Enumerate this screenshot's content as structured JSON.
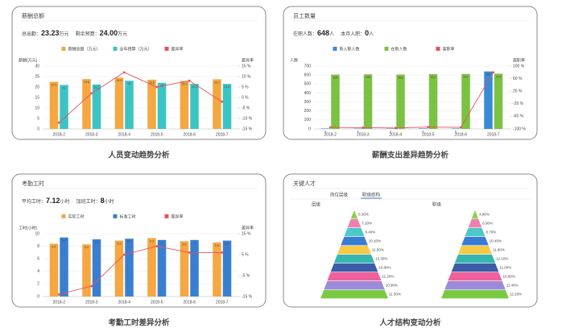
{
  "chart_data": [
    {
      "type": "bar",
      "caption": "人员变动趋势分析",
      "title": "薪酬总额",
      "stats": [
        {
          "label": "总出勤：",
          "value": "23.23",
          "unit": "万元"
        },
        {
          "label": "剩余预算：",
          "value": "24.00",
          "unit": "万元"
        }
      ],
      "y_label": "薪酬(万元)",
      "y2_label": "差异率",
      "categories": [
        "2018-2",
        "2018-3",
        "2018-4",
        "2018-5",
        "2018-6",
        "2018-7"
      ],
      "series": [
        {
          "name": "薪酬总额（万元）",
          "color": "#f5a742",
          "values": [
            22.5,
            23.8,
            24.5,
            23.5,
            22.9,
            23.7
          ]
        },
        {
          "name": "全年预算（万元）",
          "color": "#3cc4c4",
          "values": [
            21.0,
            21.2,
            23.0,
            22.0,
            21.5,
            21.5
          ]
        },
        {
          "name": "差异率",
          "color": "#e8505b",
          "axis": "y2",
          "values": [
            -12,
            2,
            12,
            5,
            8,
            -2
          ]
        }
      ],
      "ylim": [
        0,
        30
      ],
      "yticks": [
        0,
        5,
        10,
        15,
        20,
        25,
        30
      ],
      "y2lim": [
        -15,
        15
      ],
      "y2ticks": [
        {
          "value": -15,
          "label": "-15 %"
        },
        {
          "value": -10,
          "label": "-10 %"
        },
        {
          "value": -5,
          "label": "-5 %"
        },
        {
          "value": 0,
          "label": "0 %"
        },
        {
          "value": 5,
          "label": "5 %"
        },
        {
          "value": 10,
          "label": "10 %"
        },
        {
          "value": 15,
          "label": "15 %"
        }
      ]
    },
    {
      "type": "bar",
      "caption": "薪酬支出差异趋势分析",
      "title": "员工数量",
      "stats": [
        {
          "label": "在职人数：",
          "value": "648",
          "unit": "人"
        },
        {
          "label": "本月入职：",
          "value": "0",
          "unit": "人"
        }
      ],
      "y_label": "人数",
      "y2_label": "离职率",
      "categories": [
        "2018-2",
        "2018-3",
        "2018-4",
        "2018-5",
        "2018-6",
        "2018-7"
      ],
      "series": [
        {
          "name": "新入职人数",
          "color": "#3a8bd6",
          "values": [
            5,
            4,
            3,
            6,
            5,
            640
          ]
        },
        {
          "name": "在职人数",
          "color": "#7cc242",
          "values": [
            605,
            608,
            606,
            610,
            612,
            615
          ]
        },
        {
          "name": "离职率",
          "color": "#e8505b",
          "axis": "y2",
          "values": [
            -95,
            -96,
            -97,
            -94,
            -95,
            80
          ]
        }
      ],
      "ylim": [
        0,
        700
      ],
      "yticks": [
        0,
        100,
        200,
        300,
        400,
        500,
        600,
        700
      ],
      "y2lim": [
        -100,
        100
      ],
      "y2ticks": [
        {
          "value": -100,
          "label": "-100 %"
        },
        {
          "value": -60,
          "label": "-60 %"
        },
        {
          "value": -20,
          "label": "-20 %"
        },
        {
          "value": 20,
          "label": "20 %"
        },
        {
          "value": 60,
          "label": "60 %"
        },
        {
          "value": 100,
          "label": "100 %"
        }
      ]
    },
    {
      "type": "bar",
      "caption": "考勤工时差异分析",
      "title": "考勤工时",
      "stats": [
        {
          "label": "平均工时：",
          "value": "7.12",
          "unit": "小时"
        },
        {
          "label": "加班工时：",
          "value": "8",
          "unit": "小时"
        }
      ],
      "y_label": "工时(小时)",
      "y2_label": "差异率",
      "categories": [
        "2018-2",
        "2018-3",
        "2018-4",
        "2018-5",
        "2018-6",
        "2018-7"
      ],
      "series": [
        {
          "name": "实际工时",
          "color": "#f5a742",
          "values": [
            8.4,
            8.3,
            8.9,
            9.3,
            8.8,
            8.6
          ]
        },
        {
          "name": "标准工时",
          "color": "#3a7fcf",
          "values": [
            9.4,
            9.1,
            9.2,
            9.0,
            9.0,
            8.9
          ]
        },
        {
          "name": "差异率",
          "color": "#e8505b",
          "axis": "y2",
          "values": [
            -14,
            -10,
            5,
            9,
            6,
            6
          ]
        }
      ],
      "ylim": [
        0,
        10
      ],
      "yticks": [
        0,
        2,
        4,
        6,
        8,
        10
      ],
      "y2lim": [
        -15,
        15
      ],
      "y2ticks": [
        {
          "value": -15,
          "label": "-15 %"
        },
        {
          "value": -5,
          "label": "-5 %"
        },
        {
          "value": 5,
          "label": "5 %"
        },
        {
          "value": 15,
          "label": "15 %"
        }
      ]
    },
    {
      "type": "pyramid",
      "caption": "人才结构变动分析",
      "title": "关键人才",
      "tabs": [
        "岗位层级",
        "职级结构"
      ],
      "pyramids": [
        {
          "title": "层级",
          "values": [
            5.3,
            7.2,
            9.4,
            10.1,
            11.5,
            12.3,
            10.8,
            11.2,
            10.9,
            11.3
          ],
          "value_labels": [
            "5.30%",
            "7.20%",
            "9.40%",
            "10.10%",
            "11.50%",
            "12.30%",
            "10.80%",
            "11.20%",
            "10.90%",
            "11.30%"
          ]
        },
        {
          "title": "职级",
          "values": [
            4.8,
            6.9,
            8.7,
            10.4,
            11.9,
            12.1,
            11.0,
            10.6,
            11.4,
            12.2
          ],
          "value_labels": [
            "4.80%",
            "6.90%",
            "8.70%",
            "10.40%",
            "11.90%",
            "12.10%",
            "11.00%",
            "10.60%",
            "11.40%",
            "12.20%"
          ]
        }
      ],
      "colors": [
        "#8cd04a",
        "#ef7fae",
        "#4dc8c8",
        "#3a7bd5",
        "#f7c948",
        "#35b7b0",
        "#3e5ba8",
        "#f0609a",
        "#9b8bd9",
        "#7ac943"
      ]
    }
  ]
}
